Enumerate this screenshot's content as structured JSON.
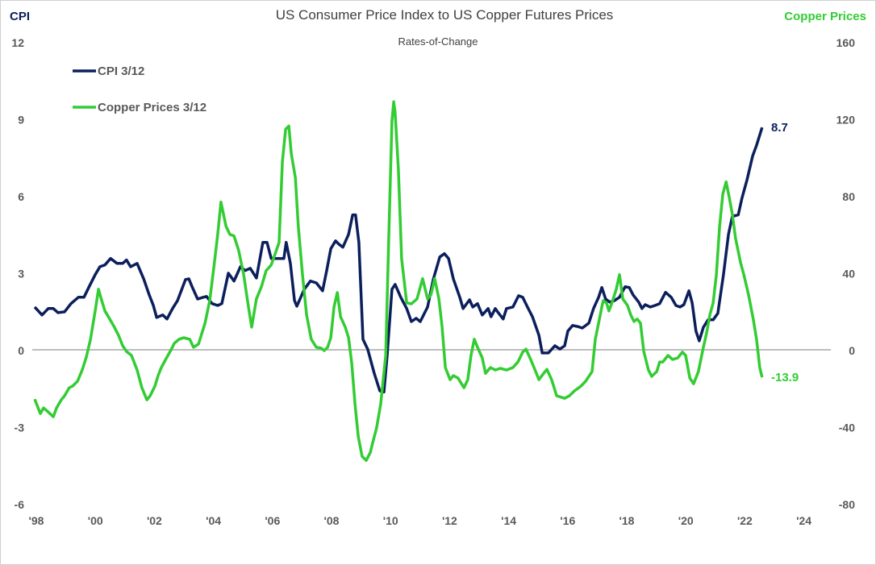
{
  "chart_data": {
    "type": "line",
    "title": "US Consumer Price Index to US Copper Futures Prices",
    "subtitle": "Rates-of-Change",
    "ylabel_left": "CPI",
    "ylabel_right": "Copper Prices",
    "ylim_left": [
      -6,
      12
    ],
    "ylim_right": [
      -80,
      160
    ],
    "yticks_left": [
      "12",
      "9",
      "6",
      "3",
      "0",
      "-3",
      "-6"
    ],
    "yticks_right": [
      "160",
      "120",
      "80",
      "40",
      "0",
      "-40",
      "-80"
    ],
    "xlim": [
      1998,
      2025
    ],
    "xticks": [
      "'98",
      "'00",
      "'02",
      "'04",
      "'06",
      "'08",
      "'10",
      "'12",
      "'14",
      "'16",
      "'18",
      "'20",
      "'22",
      "'24"
    ],
    "legend_placement": "top-left",
    "grid": false,
    "colors": {
      "cpi": "#0b1f5c",
      "copper": "#33cc33",
      "zero_line": "#a6a6a6",
      "ticks": "#595959"
    },
    "series": [
      {
        "name": "CPI 3/12",
        "axis": "left",
        "end_label": "8.7",
        "x": [
          1998.0,
          1998.25,
          1998.46,
          1998.63,
          1998.79,
          1999.01,
          1999.23,
          1999.48,
          1999.67,
          1999.83,
          2000.05,
          2000.21,
          2000.38,
          2000.57,
          2000.79,
          2000.98,
          2001.11,
          2001.25,
          2001.47,
          2001.69,
          2001.88,
          2002.02,
          2002.13,
          2002.34,
          2002.48,
          2002.67,
          2002.84,
          2003.11,
          2003.22,
          2003.33,
          2003.52,
          2003.71,
          2003.82,
          2004.01,
          2004.2,
          2004.34,
          2004.56,
          2004.75,
          2004.97,
          2005.13,
          2005.3,
          2005.51,
          2005.73,
          2005.87,
          2006.01,
          2006.14,
          2006.44,
          2006.52,
          2006.66,
          2006.8,
          2006.88,
          2007.13,
          2007.34,
          2007.54,
          2007.75,
          2007.89,
          2008.03,
          2008.19,
          2008.3,
          2008.44,
          2008.63,
          2008.77,
          2008.87,
          2008.98,
          2009.12,
          2009.28,
          2009.5,
          2009.69,
          2009.83,
          2009.94,
          2010.1,
          2010.21,
          2010.4,
          2010.6,
          2010.76,
          2010.92,
          2011.06,
          2011.31,
          2011.5,
          2011.72,
          2011.88,
          2012.02,
          2012.18,
          2012.4,
          2012.51,
          2012.73,
          2012.84,
          2013.0,
          2013.16,
          2013.36,
          2013.46,
          2013.6,
          2013.68,
          2013.87,
          2013.98,
          2014.2,
          2014.39,
          2014.53,
          2014.69,
          2014.86,
          2015.08,
          2015.19,
          2015.4,
          2015.62,
          2015.79,
          2015.95,
          2016.06,
          2016.22,
          2016.39,
          2016.55,
          2016.77,
          2016.93,
          2017.1,
          2017.21,
          2017.34,
          2017.48,
          2017.64,
          2017.81,
          2018.0,
          2018.14,
          2018.27,
          2018.46,
          2018.57,
          2018.68,
          2018.85,
          2019.01,
          2019.17,
          2019.37,
          2019.56,
          2019.72,
          2019.86,
          2019.99,
          2020.16,
          2020.27,
          2020.4,
          2020.51,
          2020.65,
          2020.81,
          2020.98,
          2021.14,
          2021.33,
          2021.5,
          2021.63,
          2021.83,
          2021.96,
          2022.13,
          2022.32,
          2022.45,
          2022.64
        ],
        "y": [
          1.7,
          1.39,
          1.64,
          1.64,
          1.48,
          1.51,
          1.83,
          2.08,
          2.08,
          2.46,
          2.96,
          3.27,
          3.34,
          3.59,
          3.4,
          3.4,
          3.53,
          3.27,
          3.4,
          2.8,
          2.17,
          1.76,
          1.29,
          1.39,
          1.23,
          1.64,
          1.95,
          2.77,
          2.8,
          2.49,
          2.01,
          2.08,
          2.11,
          1.83,
          1.76,
          1.83,
          3.02,
          2.71,
          3.27,
          3.12,
          3.21,
          2.83,
          4.22,
          4.22,
          3.59,
          3.59,
          3.59,
          4.22,
          3.4,
          1.95,
          1.73,
          2.39,
          2.71,
          2.64,
          2.33,
          3.12,
          3.97,
          4.28,
          4.15,
          4.03,
          4.53,
          5.29,
          5.29,
          4.22,
          0.44,
          0.06,
          -0.88,
          -1.57,
          -1.61,
          -0.19,
          2.39,
          2.58,
          2.08,
          1.64,
          1.13,
          1.26,
          1.13,
          1.7,
          2.77,
          3.65,
          3.78,
          3.59,
          2.8,
          2.08,
          1.64,
          1.98,
          1.7,
          1.83,
          1.39,
          1.64,
          1.32,
          1.64,
          1.51,
          1.23,
          1.64,
          1.7,
          2.14,
          2.08,
          1.7,
          1.32,
          0.6,
          -0.09,
          -0.09,
          0.19,
          0.06,
          0.19,
          0.76,
          0.98,
          0.94,
          0.88,
          1.07,
          1.64,
          2.08,
          2.46,
          2.01,
          1.89,
          1.95,
          2.08,
          2.49,
          2.46,
          2.17,
          1.89,
          1.64,
          1.79,
          1.7,
          1.76,
          1.83,
          2.27,
          2.08,
          1.76,
          1.7,
          1.79,
          2.33,
          1.86,
          0.76,
          0.38,
          0.91,
          1.2,
          1.2,
          1.45,
          2.96,
          4.53,
          5.23,
          5.29,
          5.95,
          6.67,
          7.59,
          8.0,
          8.7
        ]
      },
      {
        "name": "Copper Prices 3/12",
        "axis": "right",
        "end_label": "-13.9",
        "x": [
          1998.0,
          1998.19,
          1998.3,
          1998.46,
          1998.63,
          1998.74,
          1998.9,
          1999.01,
          1999.17,
          1999.28,
          1999.45,
          1999.61,
          1999.75,
          1999.89,
          2000.05,
          2000.16,
          2000.27,
          2000.38,
          2000.54,
          2000.7,
          2000.84,
          2000.98,
          2001.11,
          2001.28,
          2001.47,
          2001.63,
          2001.8,
          2001.91,
          2002.07,
          2002.18,
          2002.29,
          2002.45,
          2002.62,
          2002.73,
          2002.89,
          2003.05,
          2003.25,
          2003.38,
          2003.55,
          2003.77,
          2003.93,
          2004.07,
          2004.2,
          2004.31,
          2004.48,
          2004.61,
          2004.75,
          2004.91,
          2005.08,
          2005.24,
          2005.35,
          2005.51,
          2005.68,
          2005.84,
          2006.01,
          2006.11,
          2006.28,
          2006.39,
          2006.5,
          2006.61,
          2006.69,
          2006.83,
          2006.93,
          2007.07,
          2007.21,
          2007.37,
          2007.54,
          2007.7,
          2007.81,
          2007.92,
          2008.03,
          2008.14,
          2008.25,
          2008.36,
          2008.52,
          2008.63,
          2008.74,
          2008.85,
          2008.96,
          2009.09,
          2009.23,
          2009.37,
          2009.45,
          2009.58,
          2009.72,
          2009.89,
          2009.99,
          2010.1,
          2010.16,
          2010.21,
          2010.32,
          2010.43,
          2010.6,
          2010.76,
          2010.95,
          2011.14,
          2011.31,
          2011.42,
          2011.55,
          2011.69,
          2011.8,
          2011.91,
          2012.07,
          2012.18,
          2012.34,
          2012.54,
          2012.67,
          2012.78,
          2012.89,
          2013.0,
          2013.16,
          2013.27,
          2013.44,
          2013.6,
          2013.77,
          2013.98,
          2014.2,
          2014.37,
          2014.53,
          2014.64,
          2014.8,
          2014.97,
          2015.08,
          2015.24,
          2015.35,
          2015.51,
          2015.68,
          2015.95,
          2016.11,
          2016.28,
          2016.5,
          2016.66,
          2016.88,
          2016.99,
          2017.1,
          2017.21,
          2017.26,
          2017.37,
          2017.45,
          2017.54,
          2017.7,
          2017.81,
          2017.92,
          2018.08,
          2018.19,
          2018.3,
          2018.41,
          2018.52,
          2018.63,
          2018.79,
          2018.9,
          2019.07,
          2019.17,
          2019.28,
          2019.45,
          2019.61,
          2019.78,
          2019.94,
          2020.05,
          2020.19,
          2020.32,
          2020.48,
          2020.65,
          2020.76,
          2020.87,
          2020.98,
          2021.09,
          2021.2,
          2021.31,
          2021.42,
          2021.53,
          2021.63,
          2021.74,
          2021.91,
          2022.02,
          2022.18,
          2022.34,
          2022.45,
          2022.56,
          2022.64
        ],
        "y": [
          -25.2,
          -32.7,
          -29.8,
          -31.9,
          -34.4,
          -29.8,
          -25.6,
          -23.5,
          -19.3,
          -18.5,
          -15.9,
          -10.1,
          -3.4,
          5.9,
          20.6,
          31.9,
          26.0,
          20.6,
          16.4,
          12.2,
          8.0,
          2.5,
          -0.4,
          -2.5,
          -10.1,
          -19.3,
          -25.6,
          -23.5,
          -18.5,
          -13.0,
          -8.8,
          -4.2,
          0.4,
          3.8,
          5.9,
          6.7,
          5.9,
          1.7,
          3.4,
          14.3,
          26.0,
          43.6,
          60.4,
          77.2,
          64.6,
          60.4,
          59.6,
          52.0,
          39.5,
          22.7,
          12.2,
          26.9,
          33.2,
          41.5,
          44.5,
          48.7,
          56.2,
          98.2,
          115.0,
          116.7,
          102.4,
          89.8,
          64.6,
          39.5,
          18.5,
          5.9,
          1.7,
          1.3,
          0.0,
          1.7,
          6.7,
          22.7,
          30.2,
          17.6,
          12.2,
          6.7,
          -6.7,
          -27.7,
          -44.5,
          -55.0,
          -57.1,
          -52.9,
          -47.8,
          -40.3,
          -27.7,
          -2.5,
          56.2,
          119.2,
          129.3,
          123.4,
          94.0,
          47.8,
          24.8,
          24.3,
          26.9,
          37.4,
          26.9,
          29.0,
          37.4,
          26.9,
          12.2,
          -8.8,
          -15.1,
          -13.0,
          -14.3,
          -19.3,
          -15.1,
          -2.5,
          5.9,
          1.7,
          -3.8,
          -11.8,
          -8.8,
          -10.1,
          -9.2,
          -10.1,
          -8.8,
          -5.9,
          -0.8,
          0.8,
          -4.6,
          -10.9,
          -15.1,
          -11.8,
          -9.7,
          -15.1,
          -23.5,
          -24.8,
          -23.5,
          -21.0,
          -18.5,
          -15.9,
          -10.9,
          5.9,
          14.3,
          22.7,
          26.0,
          24.8,
          20.6,
          24.3,
          31.9,
          39.5,
          26.9,
          23.5,
          18.5,
          15.1,
          16.4,
          14.3,
          -0.4,
          -10.1,
          -13.4,
          -10.9,
          -5.9,
          -5.9,
          -2.5,
          -4.6,
          -3.8,
          -0.8,
          -2.5,
          -14.3,
          -17.2,
          -10.9,
          1.7,
          9.2,
          18.5,
          24.8,
          39.5,
          64.6,
          81.4,
          87.7,
          79.3,
          70.9,
          58.3,
          45.7,
          39.5,
          29.0,
          16.4,
          5.9,
          -8.8,
          -13.9
        ]
      }
    ]
  }
}
